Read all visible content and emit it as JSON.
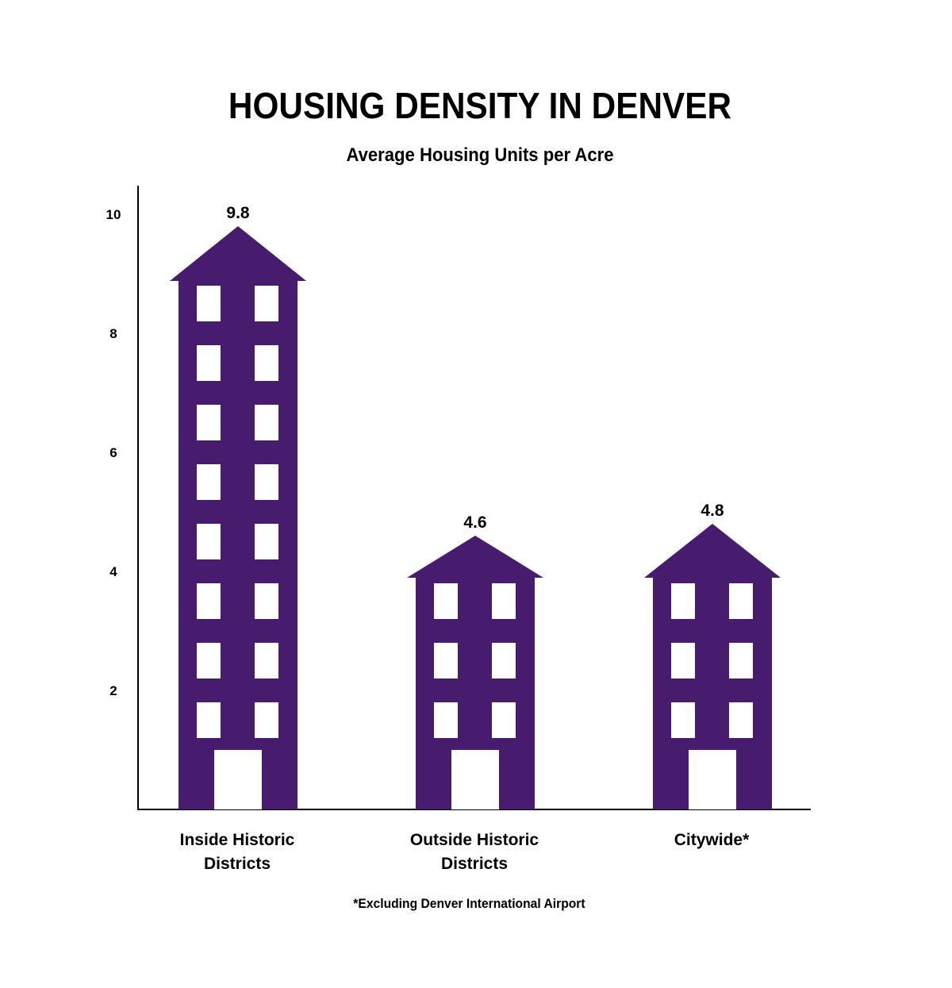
{
  "title": "HOUSING DENSITY IN DENVER",
  "subtitle": "Average Housing Units per Acre",
  "footnote": "*Excluding Denver International Airport",
  "colors": {
    "building": "#471c6e",
    "window": "#ffffff",
    "axis": "#000000"
  },
  "chart_data": {
    "type": "bar",
    "categories": [
      [
        "Inside Historic",
        "Districts"
      ],
      [
        "Outside Historic",
        "Districts"
      ],
      [
        "Citywide*"
      ]
    ],
    "values": [
      9.8,
      4.6,
      4.8
    ],
    "value_labels": [
      "9.8",
      "4.6",
      "4.8"
    ],
    "yticks": [
      2,
      4,
      6,
      8,
      10
    ],
    "ylim": [
      0,
      10.5
    ],
    "title": "Average Housing Units per Acre",
    "xlabel": "",
    "ylabel": "",
    "grid": false,
    "bar_style": "building-shaped bars"
  }
}
